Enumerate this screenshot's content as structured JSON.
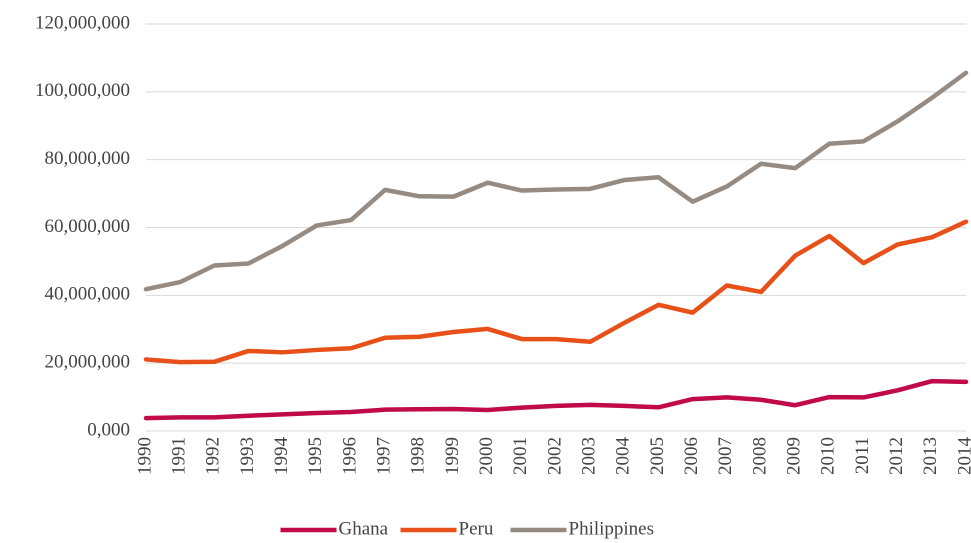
{
  "chart_data": {
    "type": "line",
    "categories": [
      "1990",
      "1991",
      "1992",
      "1993",
      "1994",
      "1995",
      "1996",
      "1997",
      "1998",
      "1999",
      "2000",
      "2001",
      "2002",
      "2003",
      "2004",
      "2005",
      "2006",
      "2007",
      "2008",
      "2009",
      "2010",
      "2011",
      "2012",
      "2013",
      "2014"
    ],
    "series": [
      {
        "name": "Ghana",
        "color": "#c00a4a",
        "values": [
          3800000,
          4000000,
          4000000,
          4500000,
          4900000,
          5300000,
          5600000,
          6300000,
          6400000,
          6500000,
          6200000,
          6900000,
          7400000,
          7700000,
          7400000,
          7000000,
          9400000,
          9900000,
          9200000,
          7600000,
          10000000,
          9900000,
          12000000,
          14700000,
          14500000
        ]
      },
      {
        "name": "Peru",
        "color": "#e8501a",
        "values": [
          21100000,
          20300000,
          20400000,
          23600000,
          23200000,
          23900000,
          24400000,
          27500000,
          27800000,
          29200000,
          30100000,
          27100000,
          27100000,
          26300000,
          31900000,
          37200000,
          34900000,
          42900000,
          41000000,
          51700000,
          57500000,
          49500000,
          55000000,
          57100000,
          61700000
        ]
      },
      {
        "name": "Philippines",
        "color": "#958b82",
        "values": [
          41800000,
          43900000,
          48800000,
          49400000,
          54600000,
          60600000,
          62200000,
          71100000,
          69200000,
          69100000,
          73200000,
          70900000,
          71200000,
          71400000,
          74000000,
          74800000,
          67600000,
          72100000,
          78800000,
          77500000,
          84700000,
          85400000,
          91300000,
          98200000,
          105600000
        ]
      }
    ],
    "ylim": [
      0,
      120000000
    ],
    "yticks": [
      {
        "value": 0,
        "label": "0,000"
      },
      {
        "value": 20000000,
        "label": "20,000,000"
      },
      {
        "value": 40000000,
        "label": "40,000,000"
      },
      {
        "value": 60000000,
        "label": "60,000,000"
      },
      {
        "value": 80000000,
        "label": "80,000,000"
      },
      {
        "value": 100000000,
        "label": "100,000,000"
      },
      {
        "value": 120000000,
        "label": "120,000,000"
      }
    ],
    "grid": true,
    "legend": "bottom"
  }
}
